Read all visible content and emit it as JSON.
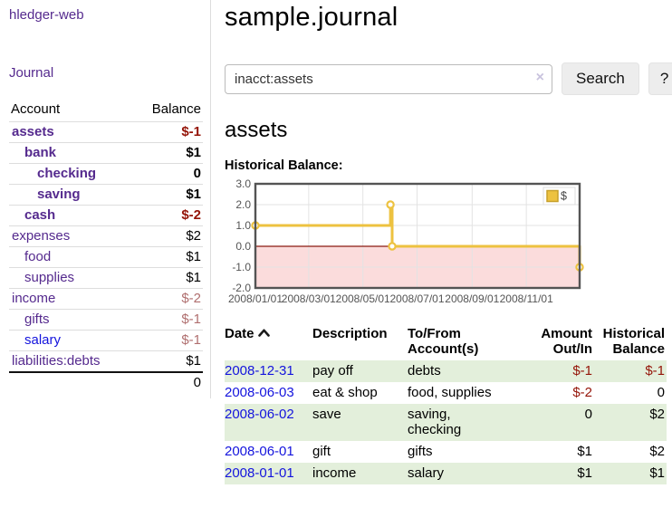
{
  "colors": {
    "purple_link": "#552a8e",
    "blue_link": "#1414dd",
    "negative_strong": "#941408",
    "negative_soft": "#b06f6f",
    "row_green": "#e3efdb",
    "chart_line": "#edc240",
    "chart_line_border": "#c7a02a",
    "chart_negative_fill": "#fbdcdc",
    "chart_zero_line": "#8b1a10",
    "chart_border": "#545454",
    "chart_grid": "#e3e3e3",
    "chart_tick_text": "#545454"
  },
  "sidebar": {
    "app_title": "hledger-web",
    "journal_link": "Journal",
    "accounts": {
      "header_account": "Account",
      "header_balance": "Balance",
      "rows": [
        {
          "name": "assets",
          "level": 1,
          "bold": true,
          "balance": "$-1",
          "balance_class": "neg-strong",
          "link_class": ""
        },
        {
          "name": "bank",
          "level": 2,
          "bold": true,
          "balance": "$1",
          "balance_class": "",
          "link_class": ""
        },
        {
          "name": "checking",
          "level": 3,
          "bold": true,
          "balance": "0",
          "balance_class": "",
          "link_class": ""
        },
        {
          "name": "saving",
          "level": 3,
          "bold": true,
          "balance": "$1",
          "balance_class": "",
          "link_class": ""
        },
        {
          "name": "cash",
          "level": 2,
          "bold": true,
          "balance": "$-2",
          "balance_class": "neg-strong",
          "link_class": ""
        },
        {
          "name": "expenses",
          "level": 1,
          "bold": false,
          "balance": "$2",
          "balance_class": "",
          "link_class": ""
        },
        {
          "name": "food",
          "level": 2,
          "bold": false,
          "balance": "$1",
          "balance_class": "",
          "link_class": ""
        },
        {
          "name": "supplies",
          "level": 2,
          "bold": false,
          "balance": "$1",
          "balance_class": "",
          "link_class": ""
        },
        {
          "name": "income",
          "level": 1,
          "bold": false,
          "balance": "$-2",
          "balance_class": "neg-soft",
          "link_class": ""
        },
        {
          "name": "gifts",
          "level": 2,
          "bold": false,
          "balance": "$-1",
          "balance_class": "neg-soft",
          "link_class": ""
        },
        {
          "name": "salary",
          "level": 2,
          "bold": false,
          "balance": "$-1",
          "balance_class": "neg-soft",
          "link_class": "blue"
        },
        {
          "name": "liabilities:debts",
          "level": 1,
          "bold": false,
          "balance": "$1",
          "balance_class": "",
          "link_class": ""
        }
      ],
      "total": "0"
    }
  },
  "header": {
    "title": "sample.journal"
  },
  "search": {
    "value": "inacct:assets",
    "clear_icon": "×",
    "search_button": "Search",
    "help_button": "?"
  },
  "account_page": {
    "heading": "assets",
    "chart_label": "Historical Balance:"
  },
  "chart_data": {
    "type": "line",
    "style": "step-after",
    "title": "Historical Balance:",
    "legend": [
      {
        "name": "$",
        "position": "top-right"
      }
    ],
    "series": [
      {
        "name": "$",
        "points": [
          {
            "x": "2008-01-01",
            "y": 1
          },
          {
            "x": "2008-06-01",
            "y": 2
          },
          {
            "x": "2008-06-03",
            "y": 0
          },
          {
            "x": "2008-12-31",
            "y": -1
          }
        ]
      }
    ],
    "x_range": [
      "2008-01-01",
      "2008-12-31"
    ],
    "x_ticks": [
      "2008/01/01",
      "2008/03/01",
      "2008/05/01",
      "2008/07/01",
      "2008/09/01",
      "2008/11/01"
    ],
    "y_ticks": [
      "3.0",
      "2.0",
      "1.0",
      "0.0",
      "-1.0",
      "-2.0"
    ],
    "ylim": [
      -2,
      3
    ],
    "grid": true,
    "negative_region_shaded_below": 0
  },
  "register": {
    "headers": {
      "date": "Date",
      "sort_direction": "ascending",
      "description": "Description",
      "accounts": "To/From Account(s)",
      "amount": "Amount Out/In",
      "balance": "Historical Balance"
    },
    "rows": [
      {
        "date": "2008-12-31",
        "description": "pay off",
        "accounts": "debts",
        "amount": "$-1",
        "amount_class": "neg-strong",
        "balance": "$-1",
        "balance_class": "neg-strong",
        "green": true
      },
      {
        "date": "2008-06-03",
        "description": "eat & shop",
        "accounts": "food, supplies",
        "amount": "$-2",
        "amount_class": "neg-strong",
        "balance": "0",
        "balance_class": "",
        "green": false
      },
      {
        "date": "2008-06-02",
        "description": "save",
        "accounts": "saving, checking",
        "amount": "0",
        "amount_class": "",
        "balance": "$2",
        "balance_class": "",
        "green": true
      },
      {
        "date": "2008-06-01",
        "description": "gift",
        "accounts": "gifts",
        "amount": "$1",
        "amount_class": "",
        "balance": "$2",
        "balance_class": "",
        "green": false
      },
      {
        "date": "2008-01-01",
        "description": "income",
        "accounts": "salary",
        "amount": "$1",
        "amount_class": "",
        "balance": "$1",
        "balance_class": "",
        "green": true
      }
    ]
  }
}
